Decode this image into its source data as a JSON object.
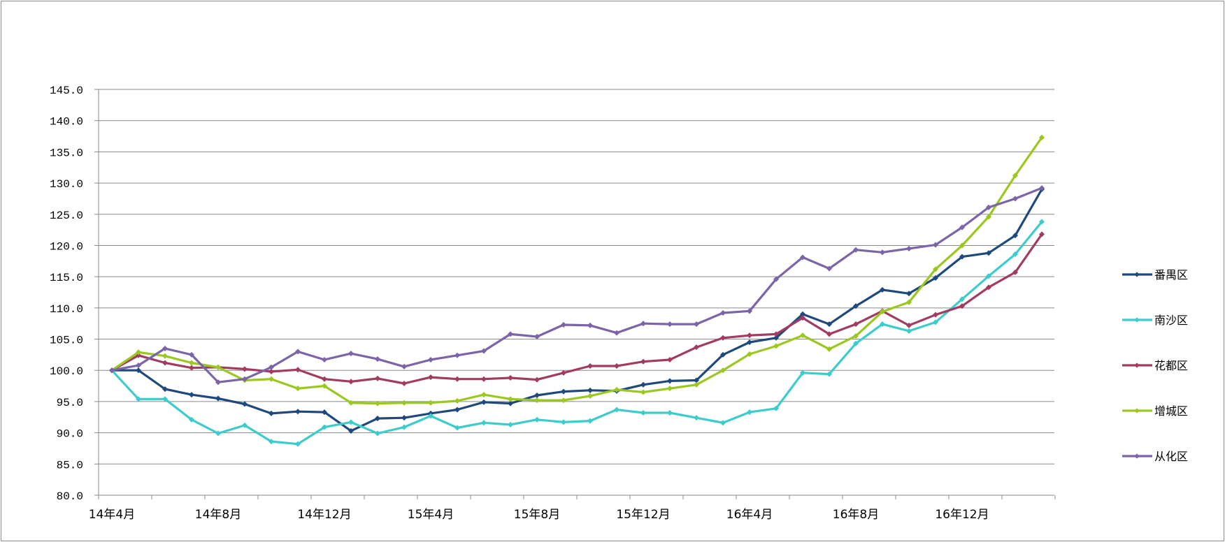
{
  "chart_data": {
    "type": "line",
    "ylim": [
      80,
      145
    ],
    "yticks": [
      "80.0",
      "85.0",
      "90.0",
      "95.0",
      "100.0",
      "105.0",
      "110.0",
      "115.0",
      "120.0",
      "125.0",
      "130.0",
      "135.0",
      "140.0",
      "145.0"
    ],
    "ytick_values": [
      80,
      85,
      90,
      95,
      100,
      105,
      110,
      115,
      120,
      125,
      130,
      135,
      140,
      145
    ],
    "xtick_labels": [
      {
        "index": 0,
        "label": "14年4月"
      },
      {
        "index": 4,
        "label": "14年8月"
      },
      {
        "index": 8,
        "label": "14年12月"
      },
      {
        "index": 12,
        "label": "15年4月"
      },
      {
        "index": 16,
        "label": "15年8月"
      },
      {
        "index": 20,
        "label": "15年12月"
      },
      {
        "index": 24,
        "label": "16年4月"
      },
      {
        "index": 28,
        "label": "16年8月"
      },
      {
        "index": 32,
        "label": "16年12月"
      }
    ],
    "x": [
      "14年4月",
      "14年5月",
      "14年6月",
      "14年7月",
      "14年8月",
      "14年9月",
      "14年10月",
      "14年11月",
      "14年12月",
      "15年1月",
      "15年2月",
      "15年3月",
      "15年4月",
      "15年5月",
      "15年6月",
      "15年7月",
      "15年8月",
      "15年9月",
      "15年10月",
      "15年11月",
      "15年12月",
      "16年1月",
      "16年2月",
      "16年3月",
      "16年4月",
      "16年5月",
      "16年6月",
      "16年7月",
      "16年8月",
      "16年9月",
      "16年10月",
      "16年11月",
      "16年12月",
      "17年1月",
      "17年2月",
      "17年3月"
    ],
    "grid": true,
    "legend": "right",
    "series": [
      {
        "name": "番禺区",
        "color": "#1f497d",
        "values": [
          100.0,
          100.0,
          97.0,
          96.1,
          95.5,
          94.6,
          93.1,
          93.4,
          93.3,
          90.3,
          92.3,
          92.4,
          93.1,
          93.7,
          94.9,
          94.7,
          96.0,
          96.6,
          96.8,
          96.7,
          97.7,
          98.3,
          98.4,
          102.5,
          104.5,
          105.2,
          109.0,
          107.4,
          110.3,
          112.9,
          112.3,
          114.8,
          118.2,
          118.8,
          121.6,
          129.0
        ]
      },
      {
        "name": "南沙区",
        "color": "#3ccccc",
        "values": [
          100.0,
          95.4,
          95.4,
          92.1,
          89.9,
          91.2,
          88.6,
          88.2,
          90.9,
          91.7,
          89.9,
          90.9,
          92.7,
          90.8,
          91.6,
          91.3,
          92.1,
          91.7,
          91.9,
          93.7,
          93.2,
          93.2,
          92.4,
          91.6,
          93.3,
          93.9,
          99.6,
          99.4,
          104.3,
          107.4,
          106.3,
          107.7,
          111.4,
          115.1,
          118.6,
          123.8
        ]
      },
      {
        "name": "花都区",
        "color": "#a33b61",
        "values": [
          100.0,
          102.4,
          101.2,
          100.4,
          100.5,
          100.2,
          99.8,
          100.1,
          98.6,
          98.2,
          98.7,
          97.9,
          98.9,
          98.6,
          98.6,
          98.8,
          98.5,
          99.6,
          100.7,
          100.7,
          101.4,
          101.7,
          103.7,
          105.2,
          105.6,
          105.8,
          108.4,
          105.8,
          107.4,
          109.5,
          107.2,
          108.9,
          110.3,
          113.3,
          115.7,
          121.8
        ]
      },
      {
        "name": "增城区",
        "color": "#9bc81f",
        "values": [
          100.0,
          102.9,
          102.3,
          101.2,
          100.5,
          98.4,
          98.6,
          97.1,
          97.5,
          94.8,
          94.7,
          94.8,
          94.8,
          95.1,
          96.1,
          95.4,
          95.2,
          95.2,
          95.9,
          96.9,
          96.5,
          97.1,
          97.7,
          100.0,
          102.6,
          103.9,
          105.6,
          103.4,
          105.5,
          109.4,
          110.9,
          116.2,
          120.0,
          124.6,
          131.2,
          137.3
        ]
      },
      {
        "name": "从化区",
        "color": "#7b64a8",
        "values": [
          100.0,
          100.8,
          103.5,
          102.5,
          98.1,
          98.6,
          100.5,
          103.0,
          101.7,
          102.7,
          101.8,
          100.6,
          101.7,
          102.4,
          103.1,
          105.8,
          105.4,
          107.3,
          107.2,
          106.0,
          107.5,
          107.4,
          107.4,
          109.2,
          109.5,
          114.6,
          118.1,
          116.3,
          119.3,
          118.9,
          119.5,
          120.1,
          122.9,
          126.1,
          127.5,
          129.2
        ]
      }
    ]
  }
}
